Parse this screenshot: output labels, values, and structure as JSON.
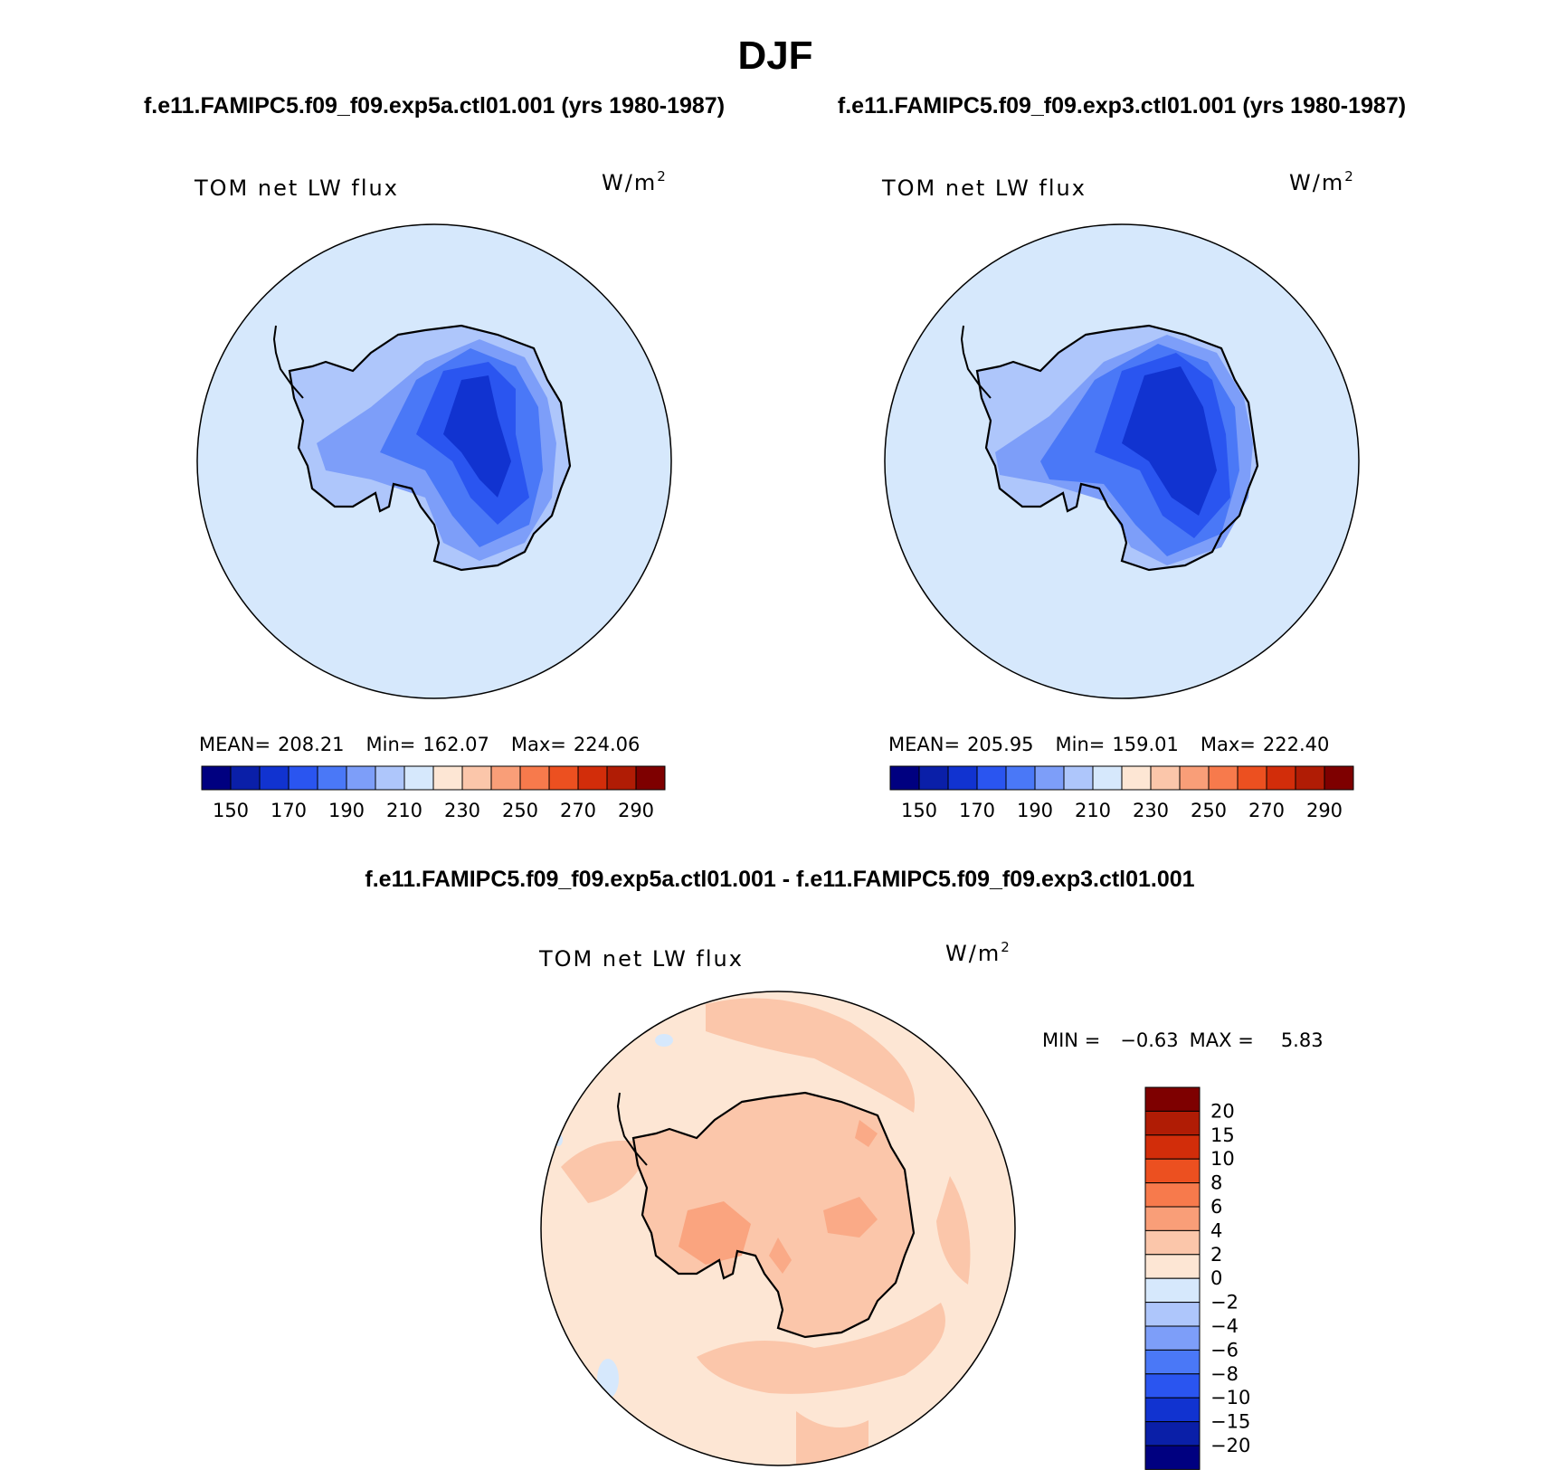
{
  "title": "DJF",
  "chart_data": [
    {
      "type": "heatmap",
      "subtitle": "f.e11.FAMIPC5.f09_f09.exp5a.ctl01.001 (yrs 1980-1987)",
      "label_left": "TOM net LW flux",
      "units_base": "W/m",
      "units_exp": "2",
      "stats": {
        "mean_label": "MEAN=",
        "mean": "208.21",
        "min_label": "Min=",
        "min": "162.07",
        "max_label": "Max=",
        "max": "224.06"
      },
      "colorbar_ticks": [
        "150",
        "170",
        "190",
        "210",
        "230",
        "250",
        "270",
        "290"
      ]
    },
    {
      "type": "heatmap",
      "subtitle": "f.e11.FAMIPC5.f09_f09.exp3.ctl01.001 (yrs 1980-1987)",
      "label_left": "TOM net LW flux",
      "units_base": "W/m",
      "units_exp": "2",
      "stats": {
        "mean_label": "MEAN=",
        "mean": "205.95",
        "min_label": "Min=",
        "min": "159.01",
        "max_label": "Max=",
        "max": "222.40"
      },
      "colorbar_ticks": [
        "150",
        "170",
        "190",
        "210",
        "230",
        "250",
        "270",
        "290"
      ]
    },
    {
      "type": "heatmap",
      "subtitle": "f.e11.FAMIPC5.f09_f09.exp5a.ctl01.001 - f.e11.FAMIPC5.f09_f09.exp3.ctl01.001",
      "label_left": "TOM net LW flux",
      "units_base": "W/m",
      "units_exp": "2",
      "stats": {
        "min_label": "MIN =",
        "min": "−0.63",
        "max_label": "MAX =",
        "max": "5.83"
      },
      "colorbar_ticks": [
        "20",
        "15",
        "10",
        "8",
        "6",
        "4",
        "2",
        "0",
        "−2",
        "−4",
        "−6",
        "−8",
        "−10",
        "−15",
        "−20"
      ]
    }
  ],
  "colors": {
    "abs_scale": [
      "#000080",
      "#0a1fa8",
      "#1133d0",
      "#2a55f0",
      "#4a78f7",
      "#7d9ef9",
      "#aec6fb",
      "#d6e8fc",
      "#fde6d4",
      "#fbc6aa",
      "#f99e78",
      "#f77a4c",
      "#ec5020",
      "#d22d0a",
      "#b01c05",
      "#7e0000"
    ],
    "diff_scale": [
      "#7e0000",
      "#b01c05",
      "#d22d0a",
      "#ec5020",
      "#f77a4c",
      "#f99e78",
      "#fbc6aa",
      "#fde6d4",
      "#d6e8fc",
      "#aec6fb",
      "#7d9ef9",
      "#4a78f7",
      "#2a55f0",
      "#1133d0",
      "#0a1fa8",
      "#000080"
    ],
    "ocean_abs": "#d6e8fc",
    "diff_background": "#fde6d4",
    "diff_land": "#fbc6aa",
    "diff_warm": "#f99e78"
  }
}
